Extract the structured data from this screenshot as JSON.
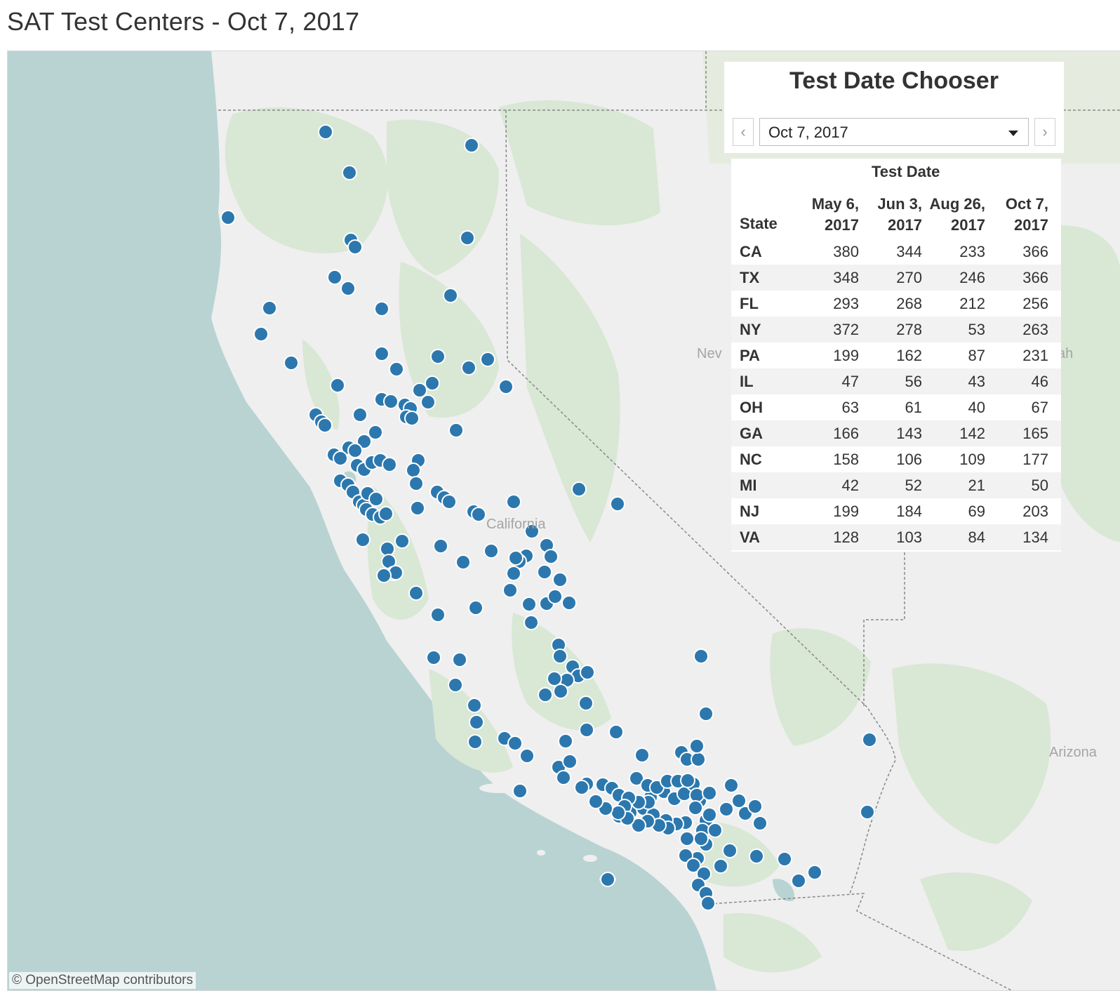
{
  "title": "SAT Test Centers - Oct 7, 2017",
  "attribution": "© OpenStreetMap contributors",
  "chooser": {
    "title": "Test Date Chooser",
    "selected": "Oct 7, 2017",
    "prev_icon": "chevron-left-icon",
    "next_icon": "chevron-right-icon",
    "dropdown_icon": "caret-down-icon"
  },
  "table": {
    "caption": "Test Date",
    "state_header": "State",
    "columns": [
      {
        "line1": "May 6,",
        "line2": "2017"
      },
      {
        "line1": "Jun 3,",
        "line2": "2017"
      },
      {
        "line1": "Aug 26,",
        "line2": "2017"
      },
      {
        "line1": "Oct 7,",
        "line2": "2017"
      }
    ],
    "rows": [
      {
        "state": "CA",
        "values": [
          "380",
          "344",
          "233",
          "366"
        ]
      },
      {
        "state": "TX",
        "values": [
          "348",
          "270",
          "246",
          "366"
        ]
      },
      {
        "state": "FL",
        "values": [
          "293",
          "268",
          "212",
          "256"
        ]
      },
      {
        "state": "NY",
        "values": [
          "372",
          "278",
          "53",
          "263"
        ]
      },
      {
        "state": "PA",
        "values": [
          "199",
          "162",
          "87",
          "231"
        ]
      },
      {
        "state": "IL",
        "values": [
          "47",
          "56",
          "43",
          "46"
        ]
      },
      {
        "state": "OH",
        "values": [
          "63",
          "61",
          "40",
          "67"
        ]
      },
      {
        "state": "GA",
        "values": [
          "166",
          "143",
          "142",
          "165"
        ]
      },
      {
        "state": "NC",
        "values": [
          "158",
          "106",
          "109",
          "177"
        ]
      },
      {
        "state": "MI",
        "values": [
          "42",
          "52",
          "21",
          "50"
        ]
      },
      {
        "state": "NJ",
        "values": [
          "199",
          "184",
          "69",
          "203"
        ]
      },
      {
        "state": "VA",
        "values": [
          "128",
          "103",
          "84",
          "134"
        ]
      }
    ]
  },
  "map": {
    "labels": {
      "california": "California",
      "nevada": "Nev",
      "utah": "Utah",
      "arizona": "Arizona"
    },
    "colors": {
      "water": "#b9d3d3",
      "land": "#efefef",
      "forest": "#d6e6d2",
      "marker": "#2c78ae",
      "marker_stroke": "#ffffff"
    }
  }
}
